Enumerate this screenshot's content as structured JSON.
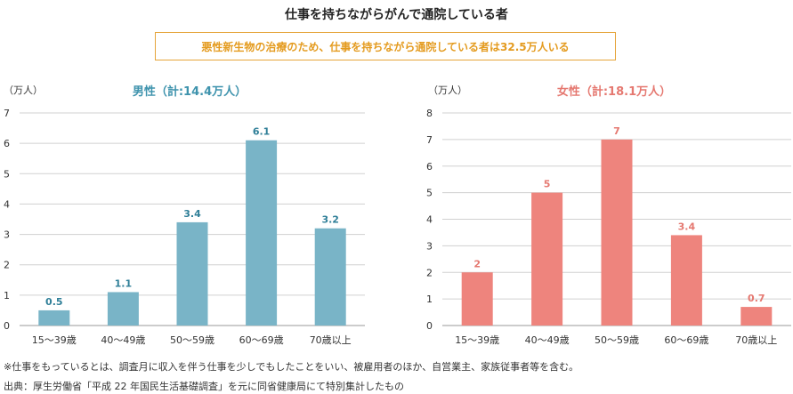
{
  "title": "仕事を持ちながらがんで通院している者",
  "banner": "悪性新生物の治療のため、仕事を持ちながら通院している者は32.5万人いる",
  "chart_data": [
    {
      "type": "bar",
      "title": "男性（計:14.4万人）",
      "unit_label": "（万人）",
      "categories": [
        "15～39歳",
        "40～49歳",
        "50～59歳",
        "60～69歳",
        "70歳以上"
      ],
      "values": [
        0.5,
        1.1,
        3.4,
        6.1,
        3.2
      ],
      "value_labels": [
        "0.5",
        "1.1",
        "3.4",
        "6.1",
        "3.2"
      ],
      "ylim": [
        0,
        7
      ],
      "yticks": [
        0,
        1,
        2,
        3,
        4,
        5,
        6,
        7
      ],
      "bar_color": "#79b4c7",
      "title_color": "#3e93ad",
      "label_color": "#2f7f98",
      "grid": true
    },
    {
      "type": "bar",
      "title": "女性（計:18.1万人）",
      "unit_label": "（万人）",
      "categories": [
        "15～39歳",
        "40～49歳",
        "50～59歳",
        "60～69歳",
        "70歳以上"
      ],
      "values": [
        2,
        5,
        7,
        3.4,
        0.7
      ],
      "value_labels": [
        "2",
        "5",
        "7",
        "3.4",
        "0.7"
      ],
      "ylim": [
        0,
        8
      ],
      "yticks": [
        0,
        1,
        2,
        3,
        4,
        5,
        6,
        7,
        8
      ],
      "bar_color": "#ee847d",
      "title_color": "#e57870",
      "label_color": "#e57870",
      "grid": true
    }
  ],
  "footnotes": [
    "※仕事をもっているとは、調査月に収入を伴う仕事を少しでもしたことをいい、被雇用者のほか、自営業主、家族従事者等を含む。",
    "出典：厚生労働省「平成 22 年国民生活基礎調査」を元に同省健康局にて特別集計したもの"
  ]
}
